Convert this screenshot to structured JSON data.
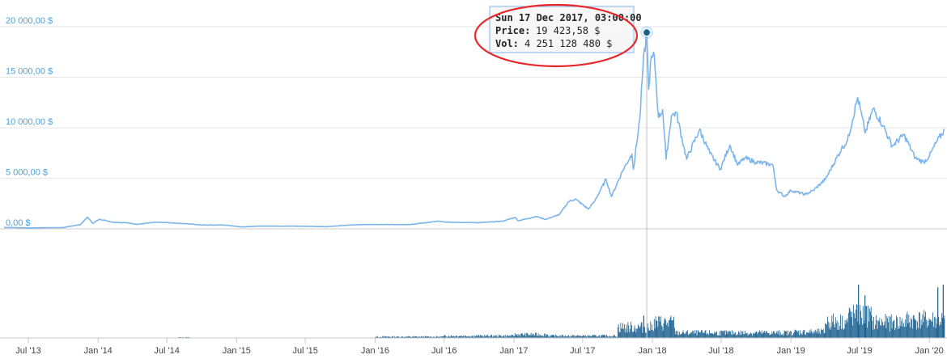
{
  "chart_data": {
    "type": "line",
    "title": "",
    "xlabel": "",
    "ylabel": "",
    "grid": true,
    "colors": {
      "price_line": "#7cb5ec",
      "volume_bars": "#1a5f8e",
      "axis_labels": "#4ea1d3",
      "annotation": "#e8262a"
    },
    "y_ticks": [
      "0,00 $",
      "5 000,00 $",
      "10 000,00 $",
      "15 000,00 $",
      "20 000,00 $"
    ],
    "y_tick_values": [
      0,
      5000,
      10000,
      15000,
      20000
    ],
    "ylim": [
      0,
      20000
    ],
    "x_ticks": [
      "Jul '13",
      "Jan '14",
      "Jul '14",
      "Jan '15",
      "Jul '15",
      "Jan '16",
      "Jul '16",
      "Jan '17",
      "Jul '17",
      "Jan '18",
      "Jul '18",
      "Jan '19",
      "Jul '19",
      "Jan '20"
    ],
    "x_tick_dates": [
      "2013-07-01",
      "2014-01-01",
      "2014-07-01",
      "2015-01-01",
      "2015-07-01",
      "2016-01-01",
      "2016-07-01",
      "2017-01-01",
      "2017-07-01",
      "2018-01-01",
      "2018-07-01",
      "2019-01-01",
      "2019-07-01",
      "2020-01-01"
    ],
    "xlim": [
      "2013-04-28",
      "2020-02-10"
    ],
    "series": [
      {
        "values": [
          [
            "2013-04-28",
            135
          ],
          [
            "2013-07-01",
            90
          ],
          [
            "2013-10-01",
            125
          ],
          [
            "2013-11-15",
            420
          ],
          [
            "2013-12-04",
            1150
          ],
          [
            "2013-12-18",
            550
          ],
          [
            "2014-01-05",
            950
          ],
          [
            "2014-02-10",
            650
          ],
          [
            "2014-03-15",
            600
          ],
          [
            "2014-04-15",
            450
          ],
          [
            "2014-06-01",
            650
          ],
          [
            "2014-07-01",
            620
          ],
          [
            "2014-09-01",
            480
          ],
          [
            "2014-10-01",
            380
          ],
          [
            "2014-12-01",
            370
          ],
          [
            "2015-01-14",
            180
          ],
          [
            "2015-03-01",
            270
          ],
          [
            "2015-07-01",
            260
          ],
          [
            "2015-08-25",
            210
          ],
          [
            "2015-11-04",
            400
          ],
          [
            "2016-01-01",
            430
          ],
          [
            "2016-04-01",
            420
          ],
          [
            "2016-06-17",
            760
          ],
          [
            "2016-07-01",
            670
          ],
          [
            "2016-10-01",
            610
          ],
          [
            "2016-12-01",
            750
          ],
          [
            "2017-01-04",
            1130
          ],
          [
            "2017-01-12",
            800
          ],
          [
            "2017-03-01",
            1220
          ],
          [
            "2017-03-25",
            930
          ],
          [
            "2017-05-01",
            1420
          ],
          [
            "2017-05-25",
            2700
          ],
          [
            "2017-06-12",
            2950
          ],
          [
            "2017-07-16",
            1950
          ],
          [
            "2017-08-01",
            2700
          ],
          [
            "2017-09-01",
            4900
          ],
          [
            "2017-09-15",
            3200
          ],
          [
            "2017-10-15",
            5800
          ],
          [
            "2017-11-08",
            7400
          ],
          [
            "2017-11-12",
            5900
          ],
          [
            "2017-11-29",
            11000
          ],
          [
            "2017-12-07",
            16000
          ],
          [
            "2017-12-17",
            19423.58
          ],
          [
            "2017-12-22",
            13800
          ],
          [
            "2017-12-27",
            16500
          ],
          [
            "2018-01-06",
            17100
          ],
          [
            "2018-01-17",
            11000
          ],
          [
            "2018-01-28",
            11800
          ],
          [
            "2018-02-06",
            6900
          ],
          [
            "2018-02-20",
            11200
          ],
          [
            "2018-03-05",
            11500
          ],
          [
            "2018-04-01",
            6900
          ],
          [
            "2018-05-05",
            9800
          ],
          [
            "2018-06-01",
            7500
          ],
          [
            "2018-06-29",
            5900
          ],
          [
            "2018-07-24",
            8300
          ],
          [
            "2018-08-14",
            6300
          ],
          [
            "2018-09-01",
            7000
          ],
          [
            "2018-10-01",
            6600
          ],
          [
            "2018-11-14",
            6350
          ],
          [
            "2018-11-25",
            3800
          ],
          [
            "2018-12-15",
            3200
          ],
          [
            "2019-01-01",
            3800
          ],
          [
            "2019-02-08",
            3400
          ],
          [
            "2019-03-01",
            3800
          ],
          [
            "2019-04-02",
            4900
          ],
          [
            "2019-05-14",
            7900
          ],
          [
            "2019-05-30",
            8700
          ],
          [
            "2019-06-26",
            13000
          ],
          [
            "2019-07-16",
            9500
          ],
          [
            "2019-08-06",
            11900
          ],
          [
            "2019-09-01",
            10200
          ],
          [
            "2019-09-25",
            8200
          ],
          [
            "2019-10-26",
            9300
          ],
          [
            "2019-11-25",
            7000
          ],
          [
            "2019-12-17",
            6600
          ],
          [
            "2020-01-01",
            7200
          ],
          [
            "2020-01-20",
            8600
          ],
          [
            "2020-02-10",
            9800
          ]
        ]
      }
    ],
    "volume": {
      "segments": [
        [
          "2014-08-01",
          "2014-08-31",
          0.015
        ],
        [
          "2016-01-01",
          "2016-06-30",
          0.03
        ],
        [
          "2016-07-01",
          "2016-12-31",
          0.05
        ],
        [
          "2017-01-01",
          "2017-03-31",
          0.08
        ],
        [
          "2017-04-01",
          "2017-09-30",
          0.05
        ],
        [
          "2017-10-01",
          "2017-12-31",
          0.25
        ],
        [
          "2018-01-01",
          "2018-02-28",
          0.35
        ],
        [
          "2018-03-01",
          "2018-12-31",
          0.12
        ],
        [
          "2019-01-01",
          "2019-03-31",
          0.14
        ],
        [
          "2019-04-01",
          "2019-05-31",
          0.38
        ],
        [
          "2019-06-01",
          "2019-07-31",
          0.52
        ],
        [
          "2019-08-01",
          "2019-10-31",
          0.36
        ],
        [
          "2019-11-01",
          "2020-02-10",
          0.42
        ]
      ],
      "peaks": [
        [
          "2017-12-08",
          0.42
        ],
        [
          "2019-06-27",
          1.0
        ],
        [
          "2019-07-14",
          0.8
        ],
        [
          "2020-01-22",
          0.95
        ],
        [
          "2020-02-05",
          1.0
        ]
      ]
    },
    "tooltip": {
      "title": "Sun 17 Dec 2017, 03:00:00",
      "price_label": "Price:",
      "price_value": "19 423,58 $",
      "vol_label": "Vol:",
      "vol_value": "4 251 128 480 $",
      "date": "2017-12-17",
      "price": 19423.58
    }
  }
}
